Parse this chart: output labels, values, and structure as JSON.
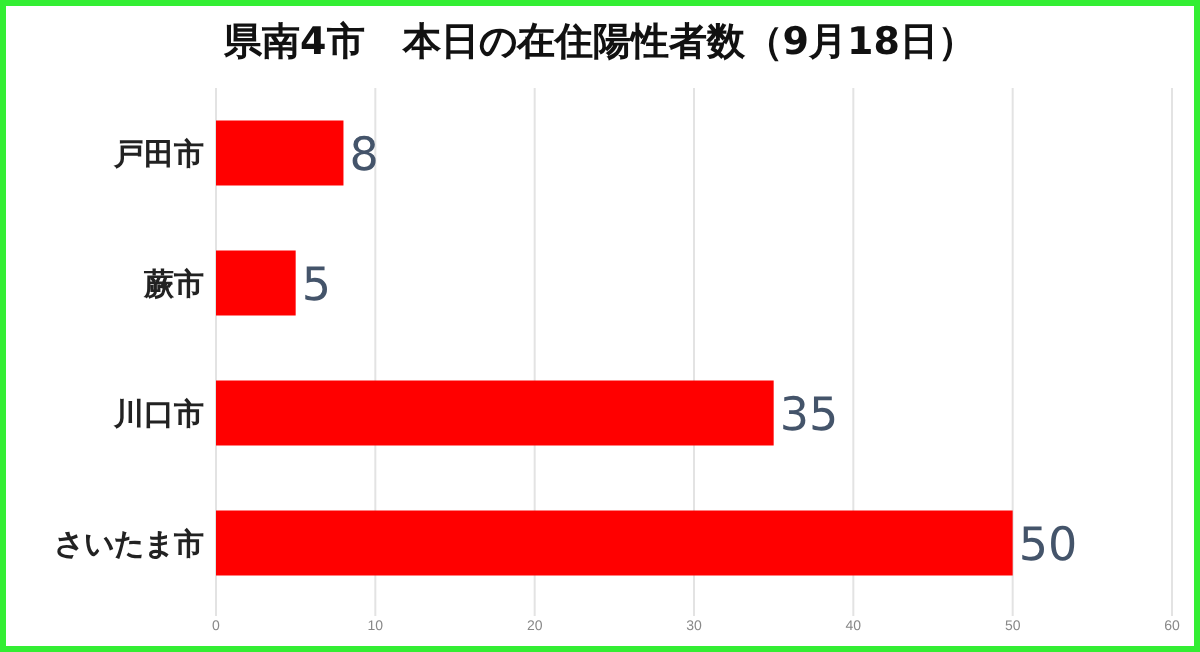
{
  "chart_data": {
    "type": "bar",
    "orientation": "horizontal",
    "title": "県南4市　本日の在住陽性者数（9月18日）",
    "categories": [
      "戸田市",
      "蕨市",
      "川口市",
      "さいたま市"
    ],
    "values": [
      8,
      5,
      35,
      50
    ],
    "color": "#ff0000",
    "data_labels": true,
    "xlim": [
      0,
      60
    ],
    "xticks": [
      0,
      10,
      20,
      30,
      40,
      50,
      60
    ],
    "grid": "x"
  }
}
